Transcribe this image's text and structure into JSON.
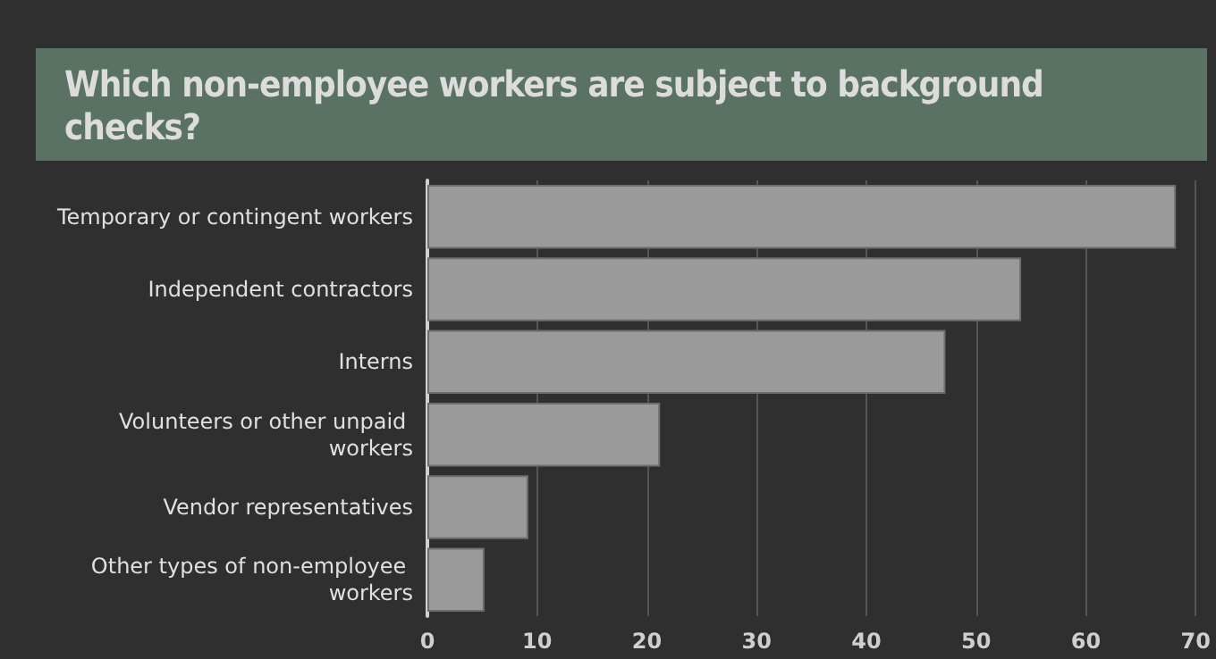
{
  "chart_data": {
    "type": "bar",
    "orientation": "horizontal",
    "title": "Which non-employee workers are subject to background checks?",
    "categories": [
      "Temporary or contingent workers",
      "Independent contractors",
      "Interns",
      "Volunteers or other unpaid workers",
      "Vendor representatives",
      "Other types of non-employee workers"
    ],
    "values": [
      68.2,
      54.1,
      47.2,
      21.2,
      9.2,
      5.2
    ],
    "color": "#9a9a9a",
    "xlim": [
      0,
      70
    ],
    "xticks": [
      0,
      10,
      20,
      30,
      40,
      50,
      60,
      70
    ],
    "grid": "x"
  }
}
